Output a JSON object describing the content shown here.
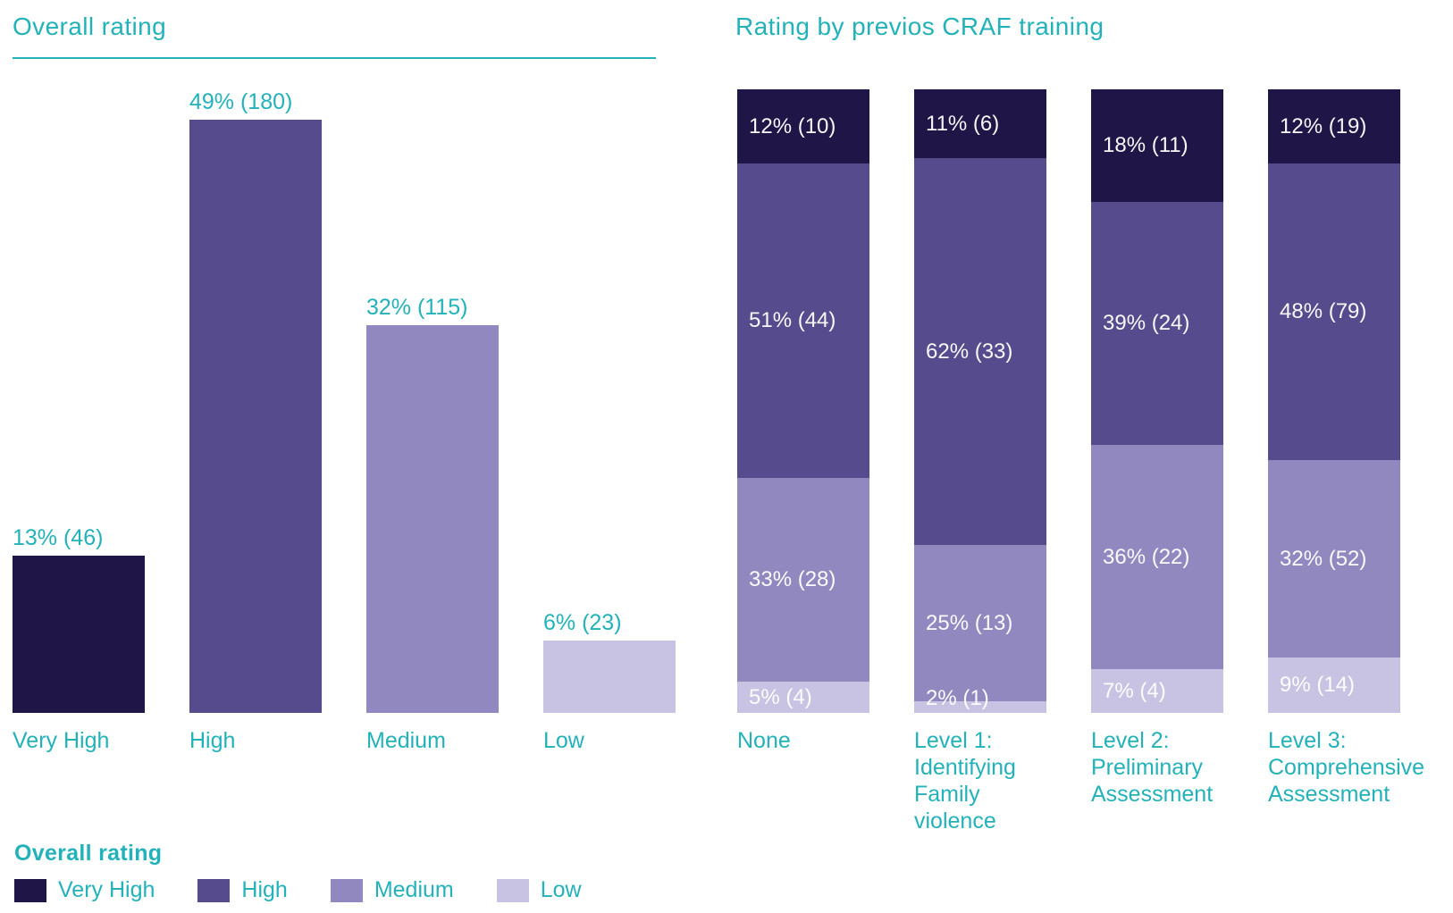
{
  "colors": {
    "accent_teal": "#23b2ba",
    "bar_label_text": "#ffffff",
    "rating_scale": {
      "Very High": "#201547",
      "High": "#564b8c",
      "Medium": "#9188c0",
      "Low": "#c8c3e3"
    }
  },
  "legend": {
    "title": "Overall rating",
    "items": [
      {
        "label": "Very High",
        "color": "#201547"
      },
      {
        "label": "High",
        "color": "#564b8c"
      },
      {
        "label": "Medium",
        "color": "#9188c0"
      },
      {
        "label": "Low",
        "color": "#c8c3e3"
      }
    ]
  },
  "chart_data": [
    {
      "type": "bar",
      "title": "Overall rating",
      "categories": [
        "Very High",
        "High",
        "Medium",
        "Low"
      ],
      "values": [
        13,
        49,
        32,
        6
      ],
      "counts": [
        46,
        180,
        115,
        23
      ],
      "data_labels": [
        "13% (46)",
        "49% (180)",
        "32% (115)",
        "6% (23)"
      ],
      "bar_colors": [
        "#201547",
        "#564b8c",
        "#9188c0",
        "#c8c3e3"
      ],
      "unit": "percent",
      "xlabel": "",
      "ylabel": "",
      "ylim": [
        0,
        55
      ],
      "grid": false,
      "axes_hidden": true
    },
    {
      "type": "bar",
      "stacked": true,
      "normalized": true,
      "title": "Rating by previos CRAF training",
      "categories": [
        "None",
        "Level 1: Identifying Family violence",
        "Level 2: Preliminary Assessment",
        "Level 3: Comprehensive Assessment"
      ],
      "segment_order_top_to_bottom": [
        "Very High",
        "High",
        "Medium",
        "Low"
      ],
      "series": [
        {
          "name": "Very High",
          "color": "#201547",
          "values": [
            12,
            11,
            18,
            12
          ],
          "counts": [
            10,
            6,
            11,
            19
          ],
          "data_labels": [
            "12% (10)",
            "11% (6)",
            "18% (11)",
            "12% (19)"
          ]
        },
        {
          "name": "High",
          "color": "#564b8c",
          "values": [
            51,
            62,
            39,
            48
          ],
          "counts": [
            44,
            33,
            24,
            79
          ],
          "data_labels": [
            "51% (44)",
            "62% (33)",
            "39% (24)",
            "48% (79)"
          ]
        },
        {
          "name": "Medium",
          "color": "#9188c0",
          "values": [
            33,
            25,
            36,
            32
          ],
          "counts": [
            28,
            13,
            22,
            52
          ],
          "data_labels": [
            "33% (28)",
            "25% (13)",
            "36% (22)",
            "32% (52)"
          ]
        },
        {
          "name": "Low",
          "color": "#c8c3e3",
          "values": [
            5,
            2,
            7,
            9
          ],
          "counts": [
            4,
            1,
            4,
            14
          ],
          "data_labels": [
            "5% (4)",
            "2% (1)",
            "7% (4)",
            "9% (14)"
          ]
        }
      ],
      "unit": "percent",
      "grid": false,
      "axes_hidden": true,
      "legend_position": "bottom-left"
    }
  ]
}
